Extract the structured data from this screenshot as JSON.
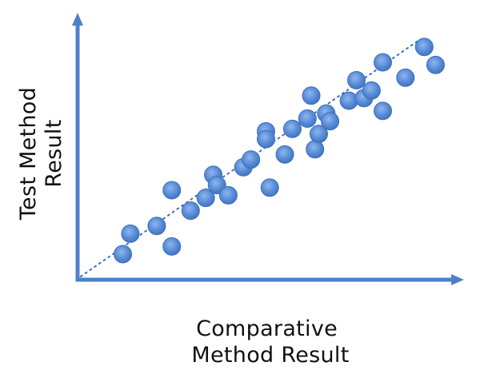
{
  "chart_data": {
    "type": "scatter",
    "title": "",
    "xlabel": [
      "Comparative",
      "Method Result"
    ],
    "ylabel": [
      "Test Method",
      "Result"
    ],
    "xlim": [
      0,
      100
    ],
    "ylim": [
      0,
      100
    ],
    "grid": false,
    "ticks": false,
    "trendline": {
      "style": "dotted",
      "x": [
        0,
        100
      ],
      "y": [
        0,
        100
      ]
    },
    "colors": {
      "axis": "#4f7fcb",
      "point_fill": "#5b8ed8",
      "point_stroke": "#3f6fb8",
      "trendline": "#3f6fb8"
    },
    "series": [
      {
        "points": [
          {
            "x": 12,
            "y": 10
          },
          {
            "x": 14,
            "y": 18
          },
          {
            "x": 21,
            "y": 21
          },
          {
            "x": 25,
            "y": 35
          },
          {
            "x": 25,
            "y": 13
          },
          {
            "x": 30,
            "y": 27
          },
          {
            "x": 34,
            "y": 32
          },
          {
            "x": 36,
            "y": 41
          },
          {
            "x": 37,
            "y": 37
          },
          {
            "x": 40,
            "y": 33
          },
          {
            "x": 44,
            "y": 44
          },
          {
            "x": 46,
            "y": 47
          },
          {
            "x": 50,
            "y": 58
          },
          {
            "x": 50,
            "y": 55
          },
          {
            "x": 51,
            "y": 36
          },
          {
            "x": 55,
            "y": 49
          },
          {
            "x": 57,
            "y": 59
          },
          {
            "x": 61,
            "y": 63
          },
          {
            "x": 62,
            "y": 72
          },
          {
            "x": 63,
            "y": 51
          },
          {
            "x": 64,
            "y": 57
          },
          {
            "x": 66,
            "y": 65
          },
          {
            "x": 67,
            "y": 62
          },
          {
            "x": 72,
            "y": 70
          },
          {
            "x": 74,
            "y": 78
          },
          {
            "x": 76,
            "y": 71
          },
          {
            "x": 78,
            "y": 74
          },
          {
            "x": 81,
            "y": 66
          },
          {
            "x": 81,
            "y": 85
          },
          {
            "x": 87,
            "y": 79
          },
          {
            "x": 92,
            "y": 91
          },
          {
            "x": 95,
            "y": 84
          }
        ]
      }
    ]
  }
}
